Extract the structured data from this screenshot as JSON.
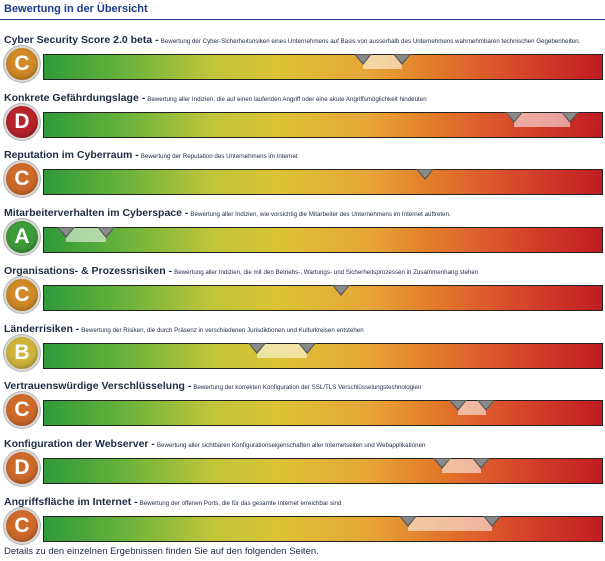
{
  "header": {
    "title": "Bewertung in der Übersicht"
  },
  "rows": [
    {
      "name": "Cyber Security Score 2.0 beta -",
      "desc": "Bewertung der Cyber-Sicherheitsrisiken eines Unternehmens auf Basis von ausserhalb des Unternehmens wahrnehmbaren technischen Gegebenheiten.",
      "grade": "C",
      "grade_color": "#d08a27",
      "markers": [
        0.57,
        0.64
      ]
    },
    {
      "name": "Konkrete Gefährdungslage -",
      "desc": "Bewertung aller Indizien, die auf einen laufenden Angriff oder eine akute Angriffsmöglichkeit hindeuten",
      "grade": "D",
      "grade_color": "#b7242c",
      "markers": [
        0.84,
        0.94
      ]
    },
    {
      "name": "Reputation im Cyberraum -",
      "desc": "Bewertung der Reputation des Unternehmens im Internet",
      "grade": "C",
      "grade_color": "#cf6a2a",
      "markers": [
        0.68
      ]
    },
    {
      "name": "Mitarbeiterverhalten im Cyberspace -",
      "desc": "Bewertung aller Indizien, wie vorsichtig die Mitarbeiter des Unternehmens im Internet auftreten.",
      "grade": "A",
      "grade_color": "#3f9a3a",
      "markers": [
        0.04,
        0.11
      ]
    },
    {
      "name": "Organisations- & Prozessrisiken -",
      "desc": "Bewertung aller Indizien, die mit den Betriebs-, Wartungs- und Sicherheitsprozessen in Zusammenhang stehen",
      "grade": "C",
      "grade_color": "#d08a27",
      "markers": [
        0.53
      ]
    },
    {
      "name": "Länderrisiken -",
      "desc": "Bewertung der Risiken, die durch Präsenz in verschiedenen Jurisdiktionen und Kulturkreisen entstehen",
      "grade": "B",
      "grade_color": "#cfb43a",
      "markers": [
        0.38,
        0.47
      ]
    },
    {
      "name": "Vertrauenswürdige Verschlüsselung -",
      "desc": "Bewertung der korrekten Konfiguration der SSL/TLS Verschlüsselungstechnologien",
      "grade": "C",
      "grade_color": "#cf6a2a",
      "markers": [
        0.74,
        0.79
      ]
    },
    {
      "name": "Konfiguration der Webserver -",
      "desc": "Bewertung aller sichtbaren Konfigurationseigenschaften aller Internetseiten und Webapplikationen",
      "grade": "D",
      "grade_color": "#cf6a2a",
      "markers": [
        0.71,
        0.78
      ]
    },
    {
      "name": "Angriffsfläche im Internet -",
      "desc": "Bewertung der offenen Ports, die für das gesamte Internet erreichbar sind",
      "grade": "C",
      "grade_color": "#cf6a2a",
      "markers": [
        0.65,
        0.8
      ]
    }
  ],
  "footer": {
    "text": "Details zu den einzelnen Ergebnissen finden Sie auf den folgenden Seiten."
  }
}
